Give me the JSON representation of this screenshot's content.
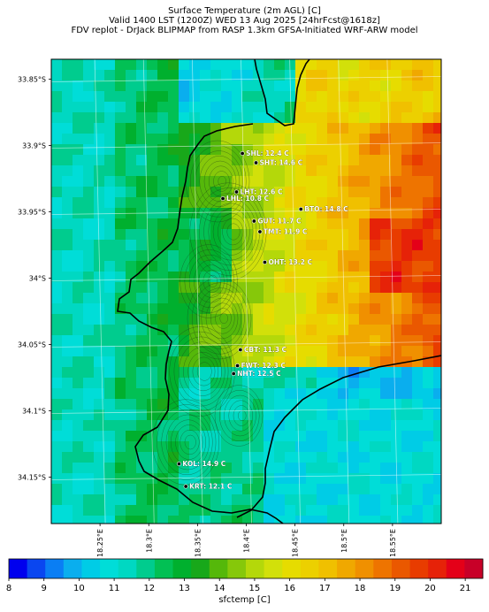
{
  "header": {
    "line1": "Surface Temperature (2m AGL) [C]",
    "line2": "Valid 1400 LST (1200Z) WED 13 Aug 2025 [24hrFcst@1618z]",
    "line3": "FDV replot - DrJack BLIPMAP from RASP 1.3km GFSA-Initiated WRF-ARW model"
  },
  "axes": {
    "lat_labels": [
      "33.85°S",
      "33.9°S",
      "33.95°S",
      "34°S",
      "34.05°S",
      "34.1°S",
      "34.15°S"
    ],
    "lon_labels": [
      "18.25°E",
      "18.3°E",
      "18.35°E",
      "18.4°E",
      "18.45°E",
      "18.5°E",
      "18.55°E"
    ]
  },
  "stations": [
    {
      "label": "SHL: 12.4 C",
      "lon": 18.396,
      "lat": -33.906
    },
    {
      "label": "SHT: 14.6 C",
      "lon": 18.41,
      "lat": -33.913
    },
    {
      "label": "LHT: 12.6 C",
      "lon": 18.39,
      "lat": -33.935
    },
    {
      "label": "LHL: 10.8 C",
      "lon": 18.376,
      "lat": -33.94
    },
    {
      "label": "BTO: 14.8 C",
      "lon": 18.456,
      "lat": -33.948
    },
    {
      "label": "GUT: 11.7 C",
      "lon": 18.408,
      "lat": -33.957
    },
    {
      "label": "TMT: 11.9 C",
      "lon": 18.414,
      "lat": -33.965
    },
    {
      "label": "OHT: 13.2 C",
      "lon": 18.419,
      "lat": -33.988
    },
    {
      "label": "CBT: 11.3 C",
      "lon": 18.394,
      "lat": -34.054
    },
    {
      "label": "FWT: 12.3 C",
      "lon": 18.391,
      "lat": -34.066
    },
    {
      "label": "NHT: 12.5 C",
      "lon": 18.387,
      "lat": -34.072
    },
    {
      "label": "KOL: 14.9 C",
      "lon": 18.331,
      "lat": -34.14
    },
    {
      "label": "KRT: 12.1 C",
      "lon": 18.338,
      "lat": -34.157
    }
  ],
  "colorbar": {
    "ticks": [
      "8",
      "9",
      "10",
      "11",
      "12",
      "13",
      "14",
      "15",
      "16",
      "17",
      "18",
      "19",
      "20",
      "21"
    ],
    "label": "sfctemp [C]",
    "colors": [
      "#0000ee",
      "#0a46f0",
      "#0a7ef4",
      "#0aaeee",
      "#00cce6",
      "#00ddd8",
      "#00d8c2",
      "#00cc8e",
      "#02c054",
      "#00b02e",
      "#18a81a",
      "#55b80a",
      "#86c80a",
      "#b4d80a",
      "#d2e00a",
      "#e6dc00",
      "#ecd000",
      "#f0c000",
      "#f0a800",
      "#f09000",
      "#ee7400",
      "#ea5800",
      "#e83c00",
      "#e62208",
      "#e40018",
      "#c80028"
    ]
  }
}
